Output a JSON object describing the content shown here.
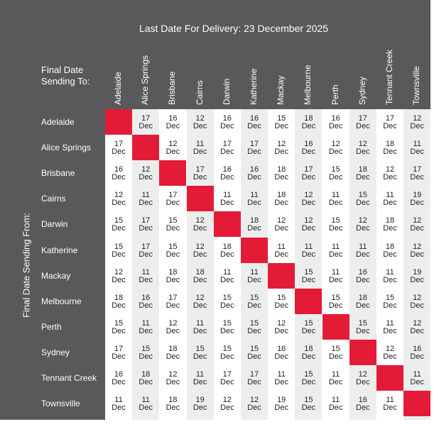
{
  "title": "Last Date For Delivery: 23 December 2025",
  "header_label": [
    "Final Date",
    "Sending To:"
  ],
  "side_label": "Final Date Sending From:",
  "diagonal_color": "#e31b37",
  "cities": [
    "Adelaide",
    "Alice Springs",
    "Brisbane",
    "Cairns",
    "Darwin",
    "Katherine",
    "Mackay",
    "Melbourne",
    "Perth",
    "Sydney",
    "Tennant Creek",
    "Townsville"
  ],
  "month": "Dec",
  "rows": [
    [
      null,
      "17",
      "16",
      "12",
      "16",
      "16",
      "15",
      "18",
      "16",
      "17",
      "17",
      "12"
    ],
    [
      "17",
      null,
      "12",
      "11",
      "17",
      "17",
      "12",
      "16",
      "12",
      "12",
      "18",
      "11"
    ],
    [
      "16",
      "12",
      null,
      "17",
      "16",
      "16",
      "18",
      "17",
      "15",
      "18",
      "12",
      "17"
    ],
    [
      "12",
      "11",
      "17",
      null,
      "11",
      "11",
      "18",
      "12",
      "11",
      "15",
      "11",
      "19"
    ],
    [
      "15",
      "17",
      "15",
      "12",
      null,
      "18",
      "12",
      "12",
      "15",
      "12",
      "18",
      "12"
    ],
    [
      "15",
      "17",
      "15",
      "12",
      "18",
      null,
      "11",
      "11",
      "11",
      "11",
      "18",
      "12"
    ],
    [
      "12",
      "11",
      "18",
      "18",
      "11",
      "11",
      null,
      "15",
      "11",
      "16",
      "11",
      "19"
    ],
    [
      "18",
      "16",
      "17",
      "12",
      "15",
      "15",
      "15",
      null,
      "15",
      "18",
      "15",
      "12"
    ],
    [
      "15",
      "11",
      "12",
      "11",
      "15",
      "15",
      "12",
      "15",
      null,
      "15",
      "11",
      "12"
    ],
    [
      "17",
      "15",
      "18",
      "15",
      "15",
      "15",
      "16",
      "18",
      "15",
      null,
      "12",
      "16"
    ],
    [
      "16",
      "18",
      "12",
      "11",
      "17",
      "17",
      "11",
      "15",
      "11",
      "12",
      null,
      "11"
    ],
    [
      "11",
      "11",
      "18",
      "19",
      "12",
      "12",
      "19",
      "15",
      "11",
      "16",
      "11",
      null
    ]
  ]
}
